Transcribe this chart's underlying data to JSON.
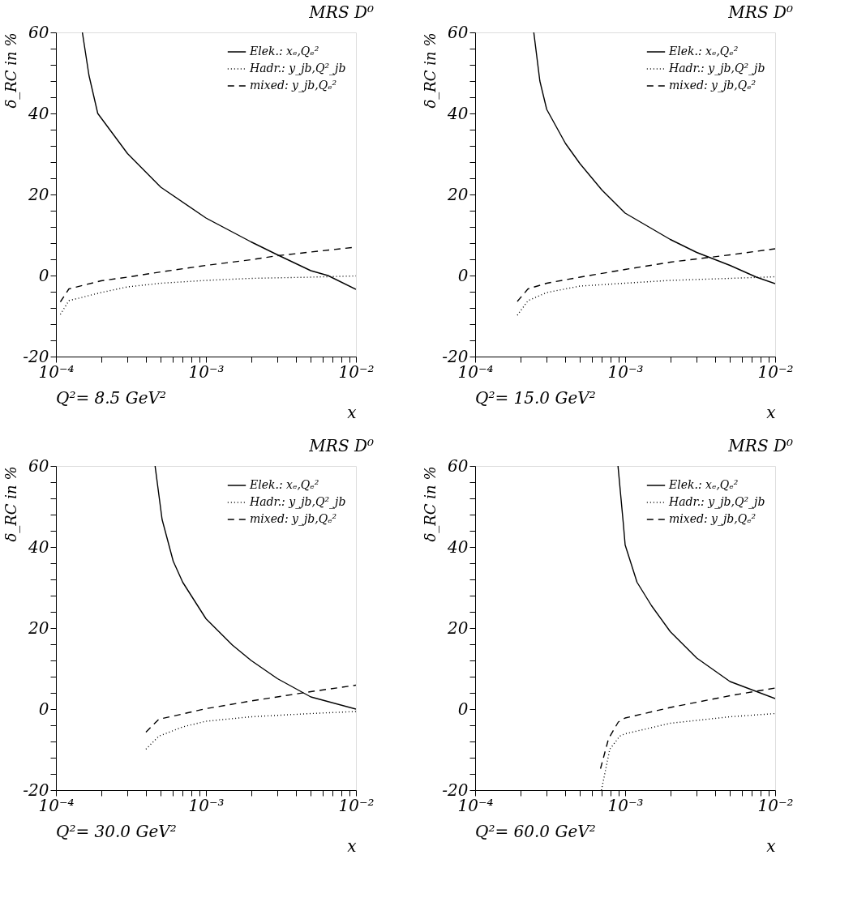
{
  "chart_data": [
    {
      "type": "line",
      "title": "MRS D⁰",
      "xlabel": "x",
      "ylabel": "δ_RC in %",
      "annotations": [
        "Q²=   8.5 GeV²"
      ],
      "log": "x",
      "legend": "top right",
      "xlim": [
        0.0001,
        0.01
      ],
      "xticks": [
        {
          "value": 0.0001,
          "label": "10⁻⁴"
        },
        {
          "value": 0.0002,
          "label": null
        },
        {
          "value": 0.0003,
          "label": null
        },
        {
          "value": 0.0004,
          "label": null
        },
        {
          "value": 0.0005,
          "label": null
        },
        {
          "value": 0.0006,
          "label": null
        },
        {
          "value": 0.0007,
          "label": null
        },
        {
          "value": 0.0008,
          "label": null
        },
        {
          "value": 0.0009,
          "label": null
        },
        {
          "value": 0.001,
          "label": "10⁻³"
        },
        {
          "value": 0.002,
          "label": null
        },
        {
          "value": 0.003,
          "label": null
        },
        {
          "value": 0.004,
          "label": null
        },
        {
          "value": 0.005,
          "label": null
        },
        {
          "value": 0.006,
          "label": null
        },
        {
          "value": 0.007,
          "label": null
        },
        {
          "value": 0.008,
          "label": null
        },
        {
          "value": 0.009,
          "label": null
        },
        {
          "value": 0.01,
          "label": "10⁻²"
        }
      ],
      "ylim": [
        -20,
        60
      ],
      "yticks": [
        -20,
        {
          "value": -16,
          "label": null
        },
        {
          "value": -12,
          "label": null
        },
        {
          "value": -8,
          "label": null
        },
        {
          "value": -4,
          "label": null
        },
        0,
        {
          "value": 4,
          "label": null
        },
        {
          "value": 8,
          "label": null
        },
        {
          "value": 12,
          "label": null
        },
        {
          "value": 16,
          "label": null
        },
        20,
        {
          "value": 24,
          "label": null
        },
        {
          "value": 28,
          "label": null
        },
        {
          "value": 32,
          "label": null
        },
        {
          "value": 36,
          "label": null
        },
        40,
        {
          "value": 44,
          "label": null
        },
        {
          "value": 48,
          "label": null
        },
        {
          "value": 52,
          "label": null
        },
        {
          "value": 56,
          "label": null
        },
        60
      ],
      "series": [
        {
          "name": "Elek.: xₑ,Qₑ²",
          "color": "#000000",
          "line_style": "solid",
          "x": [
            0.00015,
            0.000166,
            0.00019,
            0.0003,
            0.0005,
            0.001,
            0.002,
            0.003,
            0.005,
            0.0065,
            0.01
          ],
          "values": [
            60,
            49.4,
            40,
            30.1,
            21.8,
            14.2,
            8.3,
            5.1,
            1.2,
            0,
            -3.4
          ]
        },
        {
          "name": "Hadr.: y_jb,Q²_jb",
          "color": "#000000",
          "line_style": "dotted",
          "x": [
            0.000107,
            0.000122,
            0.0002,
            0.0003,
            0.0005,
            0.001,
            0.002,
            0.005,
            0.01
          ],
          "values": [
            -9.6,
            -6.2,
            -4.2,
            -2.8,
            -1.9,
            -1.2,
            -0.7,
            -0.4,
            -0.1
          ]
        },
        {
          "name": "mixed: y_jb,Qₑ²",
          "color": "#000000",
          "line_style": "dashed",
          "x": [
            0.000107,
            0.000122,
            0.0002,
            0.0003,
            0.0005,
            0.001,
            0.002,
            0.003,
            0.005,
            0.01
          ],
          "values": [
            -6.5,
            -3.3,
            -1.3,
            -0.4,
            0.9,
            2.5,
            3.9,
            4.9,
            5.8,
            7.0
          ]
        }
      ]
    },
    {
      "type": "line",
      "title": "MRS D⁰",
      "xlabel": "x",
      "ylabel": "δ_RC in %",
      "annotations": [
        "Q²=   15.0 GeV²"
      ],
      "log": "x",
      "legend": "top right",
      "xlim": [
        0.0001,
        0.01
      ],
      "xticks": [
        {
          "value": 0.0001,
          "label": "10⁻⁴"
        },
        {
          "value": 0.0002,
          "label": null
        },
        {
          "value": 0.0003,
          "label": null
        },
        {
          "value": 0.0004,
          "label": null
        },
        {
          "value": 0.0005,
          "label": null
        },
        {
          "value": 0.0006,
          "label": null
        },
        {
          "value": 0.0007,
          "label": null
        },
        {
          "value": 0.0008,
          "label": null
        },
        {
          "value": 0.0009,
          "label": null
        },
        {
          "value": 0.001,
          "label": "10⁻³"
        },
        {
          "value": 0.002,
          "label": null
        },
        {
          "value": 0.003,
          "label": null
        },
        {
          "value": 0.004,
          "label": null
        },
        {
          "value": 0.005,
          "label": null
        },
        {
          "value": 0.006,
          "label": null
        },
        {
          "value": 0.007,
          "label": null
        },
        {
          "value": 0.008,
          "label": null
        },
        {
          "value": 0.009,
          "label": null
        },
        {
          "value": 0.01,
          "label": "10⁻²"
        }
      ],
      "ylim": [
        -20,
        60
      ],
      "yticks": [
        -20,
        {
          "value": -16,
          "label": null
        },
        {
          "value": -12,
          "label": null
        },
        {
          "value": -8,
          "label": null
        },
        {
          "value": -4,
          "label": null
        },
        0,
        {
          "value": 4,
          "label": null
        },
        {
          "value": 8,
          "label": null
        },
        {
          "value": 12,
          "label": null
        },
        {
          "value": 16,
          "label": null
        },
        20,
        {
          "value": 24,
          "label": null
        },
        {
          "value": 28,
          "label": null
        },
        {
          "value": 32,
          "label": null
        },
        {
          "value": 36,
          "label": null
        },
        40,
        {
          "value": 44,
          "label": null
        },
        {
          "value": 48,
          "label": null
        },
        {
          "value": 52,
          "label": null
        },
        {
          "value": 56,
          "label": null
        },
        60
      ],
      "series": [
        {
          "name": "Elek.: xₑ,Qₑ²",
          "color": "#000000",
          "line_style": "solid",
          "x": [
            0.000246,
            0.00027,
            0.0003,
            0.0004,
            0.0005,
            0.0007,
            0.001,
            0.002,
            0.003,
            0.005,
            0.0075,
            0.01
          ],
          "values": [
            60,
            48,
            41,
            32.6,
            27.6,
            21.1,
            15.4,
            8.9,
            5.7,
            2.5,
            -0.4,
            -2.0
          ]
        },
        {
          "name": "Hadr.: y_jb,Q²_jb",
          "color": "#000000",
          "line_style": "dotted",
          "x": [
            0.000191,
            0.000225,
            0.0003,
            0.0005,
            0.001,
            0.002,
            0.005,
            0.01
          ],
          "values": [
            -9.8,
            -6.2,
            -4.2,
            -2.6,
            -1.9,
            -1.2,
            -0.7,
            -0.3
          ]
        },
        {
          "name": "mixed: y_jb,Qₑ²",
          "color": "#000000",
          "line_style": "dashed",
          "x": [
            0.000191,
            0.000225,
            0.0003,
            0.0005,
            0.001,
            0.002,
            0.005,
            0.01
          ],
          "values": [
            -6.4,
            -3.3,
            -1.9,
            -0.4,
            1.5,
            3.3,
            5.1,
            6.6
          ]
        }
      ]
    },
    {
      "type": "line",
      "title": "MRS D⁰",
      "xlabel": "x",
      "ylabel": "δ_RC in %",
      "annotations": [
        "Q²=   30.0 GeV²"
      ],
      "log": "x",
      "legend": "top right",
      "xlim": [
        0.0001,
        0.01
      ],
      "xticks": [
        {
          "value": 0.0001,
          "label": "10⁻⁴"
        },
        {
          "value": 0.0002,
          "label": null
        },
        {
          "value": 0.0003,
          "label": null
        },
        {
          "value": 0.0004,
          "label": null
        },
        {
          "value": 0.0005,
          "label": null
        },
        {
          "value": 0.0006,
          "label": null
        },
        {
          "value": 0.0007,
          "label": null
        },
        {
          "value": 0.0008,
          "label": null
        },
        {
          "value": 0.0009,
          "label": null
        },
        {
          "value": 0.001,
          "label": "10⁻³"
        },
        {
          "value": 0.002,
          "label": null
        },
        {
          "value": 0.003,
          "label": null
        },
        {
          "value": 0.004,
          "label": null
        },
        {
          "value": 0.005,
          "label": null
        },
        {
          "value": 0.006,
          "label": null
        },
        {
          "value": 0.007,
          "label": null
        },
        {
          "value": 0.008,
          "label": null
        },
        {
          "value": 0.009,
          "label": null
        },
        {
          "value": 0.01,
          "label": "10⁻²"
        }
      ],
      "ylim": [
        -20,
        60
      ],
      "yticks": [
        -20,
        {
          "value": -16,
          "label": null
        },
        {
          "value": -12,
          "label": null
        },
        {
          "value": -8,
          "label": null
        },
        {
          "value": -4,
          "label": null
        },
        0,
        {
          "value": 4,
          "label": null
        },
        {
          "value": 8,
          "label": null
        },
        {
          "value": 12,
          "label": null
        },
        {
          "value": 16,
          "label": null
        },
        20,
        {
          "value": 24,
          "label": null
        },
        {
          "value": 28,
          "label": null
        },
        {
          "value": 32,
          "label": null
        },
        {
          "value": 36,
          "label": null
        },
        40,
        {
          "value": 44,
          "label": null
        },
        {
          "value": 48,
          "label": null
        },
        {
          "value": 52,
          "label": null
        },
        {
          "value": 56,
          "label": null
        },
        60
      ],
      "series": [
        {
          "name": "Elek.: xₑ,Qₑ²",
          "color": "#000000",
          "line_style": "solid",
          "x": [
            0.000458,
            0.00051,
            0.000605,
            0.0007,
            0.001,
            0.0015,
            0.002,
            0.003,
            0.005,
            0.01
          ],
          "values": [
            60,
            46.8,
            36.5,
            31.3,
            22.3,
            15.8,
            12.0,
            7.5,
            3.0,
            0
          ]
        },
        {
          "name": "Hadr.: y_jb,Q²_jb",
          "color": "#000000",
          "line_style": "dotted",
          "x": [
            0.000398,
            0.000485,
            0.0007,
            0.001,
            0.002,
            0.005,
            0.01
          ],
          "values": [
            -9.9,
            -6.7,
            -4.4,
            -3.0,
            -1.9,
            -1.1,
            -0.6
          ]
        },
        {
          "name": "mixed: y_jb,Qₑ²",
          "color": "#000000",
          "line_style": "dashed",
          "x": [
            0.000398,
            0.000485,
            0.0007,
            0.001,
            0.002,
            0.005,
            0.01
          ],
          "values": [
            -5.7,
            -2.5,
            -1.2,
            0.1,
            2.0,
            4.3,
            5.9
          ]
        }
      ]
    },
    {
      "type": "line",
      "title": "MRS D⁰",
      "xlabel": "x",
      "ylabel": "δ_RC in %",
      "annotations": [
        "Q²=   60.0 GeV²"
      ],
      "log": "x",
      "legend": "top right",
      "xlim": [
        0.0001,
        0.01
      ],
      "xticks": [
        {
          "value": 0.0001,
          "label": "10⁻⁴"
        },
        {
          "value": 0.0002,
          "label": null
        },
        {
          "value": 0.0003,
          "label": null
        },
        {
          "value": 0.0004,
          "label": null
        },
        {
          "value": 0.0005,
          "label": null
        },
        {
          "value": 0.0006,
          "label": null
        },
        {
          "value": 0.0007,
          "label": null
        },
        {
          "value": 0.0008,
          "label": null
        },
        {
          "value": 0.0009,
          "label": null
        },
        {
          "value": 0.001,
          "label": "10⁻³"
        },
        {
          "value": 0.002,
          "label": null
        },
        {
          "value": 0.003,
          "label": null
        },
        {
          "value": 0.004,
          "label": null
        },
        {
          "value": 0.005,
          "label": null
        },
        {
          "value": 0.006,
          "label": null
        },
        {
          "value": 0.007,
          "label": null
        },
        {
          "value": 0.008,
          "label": null
        },
        {
          "value": 0.009,
          "label": null
        },
        {
          "value": 0.01,
          "label": "10⁻²"
        }
      ],
      "ylim": [
        -20,
        60
      ],
      "yticks": [
        -20,
        {
          "value": -16,
          "label": null
        },
        {
          "value": -12,
          "label": null
        },
        {
          "value": -8,
          "label": null
        },
        {
          "value": -4,
          "label": null
        },
        0,
        {
          "value": 4,
          "label": null
        },
        {
          "value": 8,
          "label": null
        },
        {
          "value": 12,
          "label": null
        },
        {
          "value": 16,
          "label": null
        },
        20,
        {
          "value": 24,
          "label": null
        },
        {
          "value": 28,
          "label": null
        },
        {
          "value": 32,
          "label": null
        },
        {
          "value": 36,
          "label": null
        },
        40,
        {
          "value": 44,
          "label": null
        },
        {
          "value": 48,
          "label": null
        },
        {
          "value": 52,
          "label": null
        },
        {
          "value": 56,
          "label": null
        },
        60
      ],
      "series": [
        {
          "name": "Elek.: xₑ,Qₑ²",
          "color": "#000000",
          "line_style": "solid",
          "x": [
            0.000896,
            0.00097,
            0.001,
            0.0012,
            0.0015,
            0.002,
            0.003,
            0.005,
            0.01
          ],
          "values": [
            60,
            46.2,
            40.5,
            31.3,
            25.5,
            19.1,
            12.6,
            6.8,
            2.6
          ]
        },
        {
          "name": "Hadr.: y_jb,Q²_jb",
          "color": "#000000",
          "line_style": "dotted",
          "x": [
            0.000695,
            0.00079,
            0.00092,
            0.001,
            0.002,
            0.005,
            0.01
          ],
          "values": [
            -20,
            -9.9,
            -6.7,
            -6.1,
            -3.5,
            -1.9,
            -1.1
          ]
        },
        {
          "name": "mixed: y_jb,Qₑ²",
          "color": "#000000",
          "line_style": "dashed",
          "x": [
            0.000685,
            0.000775,
            0.0009,
            0.001,
            0.002,
            0.005,
            0.01
          ],
          "values": [
            -14.7,
            -7.3,
            -3.2,
            -2.2,
            0.4,
            3.3,
            5.2
          ]
        }
      ]
    }
  ]
}
